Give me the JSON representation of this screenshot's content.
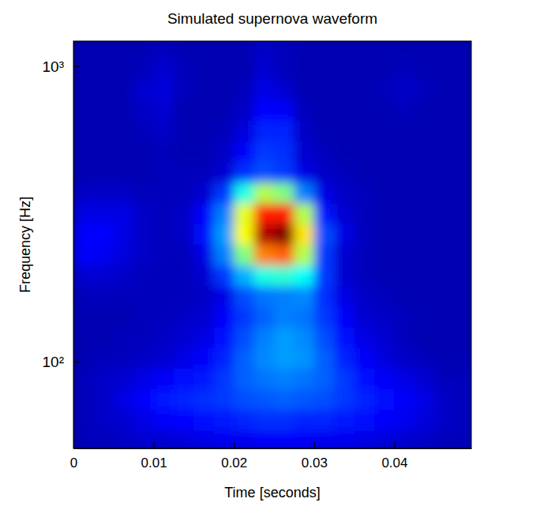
{
  "chart_data": {
    "type": "heatmap",
    "title": "Simulated supernova waveform",
    "x_label": "Time [seconds]",
    "y_label": "Frequency [Hz]",
    "log": "y",
    "color": "jet",
    "xlim": [
      0,
      0.0496
    ],
    "ylim": [
      51,
      1218
    ],
    "xticks": [
      0,
      0.01,
      0.02,
      0.03,
      0.04
    ],
    "yticks": [
      {
        "value": 100,
        "label": "10²"
      },
      {
        "value": 1000,
        "label": "10³"
      }
    ],
    "zlim": [
      0,
      1
    ],
    "x_edges": [
      0,
      0.0025,
      0.005,
      0.0075,
      0.01,
      0.0125,
      0.015,
      0.0175,
      0.02,
      0.0225,
      0.025,
      0.0275,
      0.03,
      0.0325,
      0.035,
      0.0375,
      0.04,
      0.0425,
      0.045,
      0.0475,
      0.05
    ],
    "y_edges": [
      50,
      58.7,
      69.0,
      81.0,
      95.2,
      111.8,
      131.3,
      154.2,
      181.1,
      212.8,
      250,
      293.6,
      344.9,
      405.1,
      475.8,
      558.9,
      656.5,
      771.1,
      905.8,
      1064,
      1250
    ],
    "values": [
      [
        0.06,
        0.06,
        0.07,
        0.08,
        0.08,
        0.09,
        0.1,
        0.11,
        0.11,
        0.12,
        0.12,
        0.12,
        0.11,
        0.11,
        0.1,
        0.09,
        0.08,
        0.07,
        0.06,
        0.06
      ],
      [
        0.06,
        0.07,
        0.08,
        0.1,
        0.12,
        0.13,
        0.14,
        0.15,
        0.16,
        0.17,
        0.17,
        0.16,
        0.16,
        0.15,
        0.14,
        0.12,
        0.11,
        0.09,
        0.07,
        0.06
      ],
      [
        0.06,
        0.07,
        0.1,
        0.13,
        0.15,
        0.16,
        0.17,
        0.18,
        0.2,
        0.21,
        0.22,
        0.21,
        0.2,
        0.18,
        0.16,
        0.14,
        0.12,
        0.1,
        0.07,
        0.06
      ],
      [
        0.06,
        0.07,
        0.08,
        0.1,
        0.12,
        0.14,
        0.15,
        0.18,
        0.22,
        0.24,
        0.25,
        0.24,
        0.22,
        0.18,
        0.14,
        0.12,
        0.1,
        0.08,
        0.06,
        0.06
      ],
      [
        0.05,
        0.06,
        0.06,
        0.07,
        0.08,
        0.1,
        0.12,
        0.16,
        0.22,
        0.26,
        0.28,
        0.27,
        0.22,
        0.16,
        0.12,
        0.09,
        0.07,
        0.06,
        0.05,
        0.05
      ],
      [
        0.05,
        0.05,
        0.06,
        0.06,
        0.07,
        0.08,
        0.1,
        0.14,
        0.2,
        0.25,
        0.28,
        0.26,
        0.2,
        0.14,
        0.1,
        0.08,
        0.06,
        0.05,
        0.05,
        0.05
      ],
      [
        0.05,
        0.05,
        0.05,
        0.06,
        0.06,
        0.07,
        0.08,
        0.12,
        0.18,
        0.22,
        0.25,
        0.24,
        0.18,
        0.12,
        0.08,
        0.07,
        0.06,
        0.05,
        0.05,
        0.05
      ],
      [
        0.06,
        0.06,
        0.06,
        0.06,
        0.06,
        0.06,
        0.07,
        0.1,
        0.2,
        0.24,
        0.25,
        0.26,
        0.17,
        0.1,
        0.07,
        0.06,
        0.05,
        0.05,
        0.05,
        0.05
      ],
      [
        0.08,
        0.08,
        0.07,
        0.06,
        0.06,
        0.06,
        0.08,
        0.18,
        0.3,
        0.4,
        0.42,
        0.38,
        0.18,
        0.08,
        0.06,
        0.05,
        0.05,
        0.05,
        0.05,
        0.05
      ],
      [
        0.12,
        0.11,
        0.09,
        0.07,
        0.06,
        0.06,
        0.1,
        0.25,
        0.5,
        0.75,
        0.78,
        0.55,
        0.18,
        0.08,
        0.06,
        0.05,
        0.05,
        0.05,
        0.05,
        0.05
      ],
      [
        0.13,
        0.13,
        0.1,
        0.07,
        0.06,
        0.07,
        0.14,
        0.28,
        0.62,
        0.95,
        1.0,
        0.65,
        0.2,
        0.1,
        0.06,
        0.05,
        0.05,
        0.05,
        0.05,
        0.05
      ],
      [
        0.1,
        0.1,
        0.1,
        0.07,
        0.06,
        0.07,
        0.12,
        0.25,
        0.6,
        0.85,
        0.85,
        0.55,
        0.15,
        0.08,
        0.06,
        0.05,
        0.05,
        0.05,
        0.05,
        0.05
      ],
      [
        0.07,
        0.07,
        0.07,
        0.06,
        0.06,
        0.06,
        0.08,
        0.18,
        0.4,
        0.55,
        0.5,
        0.25,
        0.1,
        0.07,
        0.06,
        0.05,
        0.05,
        0.05,
        0.05,
        0.05
      ],
      [
        0.05,
        0.05,
        0.05,
        0.05,
        0.06,
        0.06,
        0.06,
        0.08,
        0.17,
        0.2,
        0.18,
        0.1,
        0.07,
        0.06,
        0.05,
        0.05,
        0.05,
        0.05,
        0.05,
        0.05
      ],
      [
        0.05,
        0.05,
        0.05,
        0.05,
        0.06,
        0.05,
        0.05,
        0.07,
        0.12,
        0.18,
        0.17,
        0.08,
        0.06,
        0.05,
        0.05,
        0.05,
        0.05,
        0.05,
        0.05,
        0.05
      ],
      [
        0.05,
        0.05,
        0.05,
        0.06,
        0.07,
        0.05,
        0.05,
        0.06,
        0.09,
        0.16,
        0.16,
        0.07,
        0.05,
        0.05,
        0.05,
        0.05,
        0.05,
        0.05,
        0.05,
        0.05
      ],
      [
        0.05,
        0.05,
        0.05,
        0.07,
        0.08,
        0.05,
        0.05,
        0.05,
        0.07,
        0.13,
        0.12,
        0.06,
        0.05,
        0.05,
        0.05,
        0.05,
        0.06,
        0.05,
        0.05,
        0.05
      ],
      [
        0.05,
        0.05,
        0.05,
        0.08,
        0.09,
        0.06,
        0.05,
        0.05,
        0.06,
        0.1,
        0.08,
        0.05,
        0.05,
        0.05,
        0.05,
        0.06,
        0.07,
        0.06,
        0.05,
        0.05
      ],
      [
        0.05,
        0.05,
        0.05,
        0.06,
        0.08,
        0.06,
        0.05,
        0.05,
        0.05,
        0.08,
        0.06,
        0.05,
        0.05,
        0.05,
        0.05,
        0.05,
        0.06,
        0.05,
        0.05,
        0.05
      ],
      [
        0.05,
        0.05,
        0.05,
        0.05,
        0.06,
        0.05,
        0.05,
        0.05,
        0.05,
        0.07,
        0.06,
        0.05,
        0.05,
        0.05,
        0.05,
        0.05,
        0.05,
        0.05,
        0.05,
        0.05
      ]
    ]
  }
}
